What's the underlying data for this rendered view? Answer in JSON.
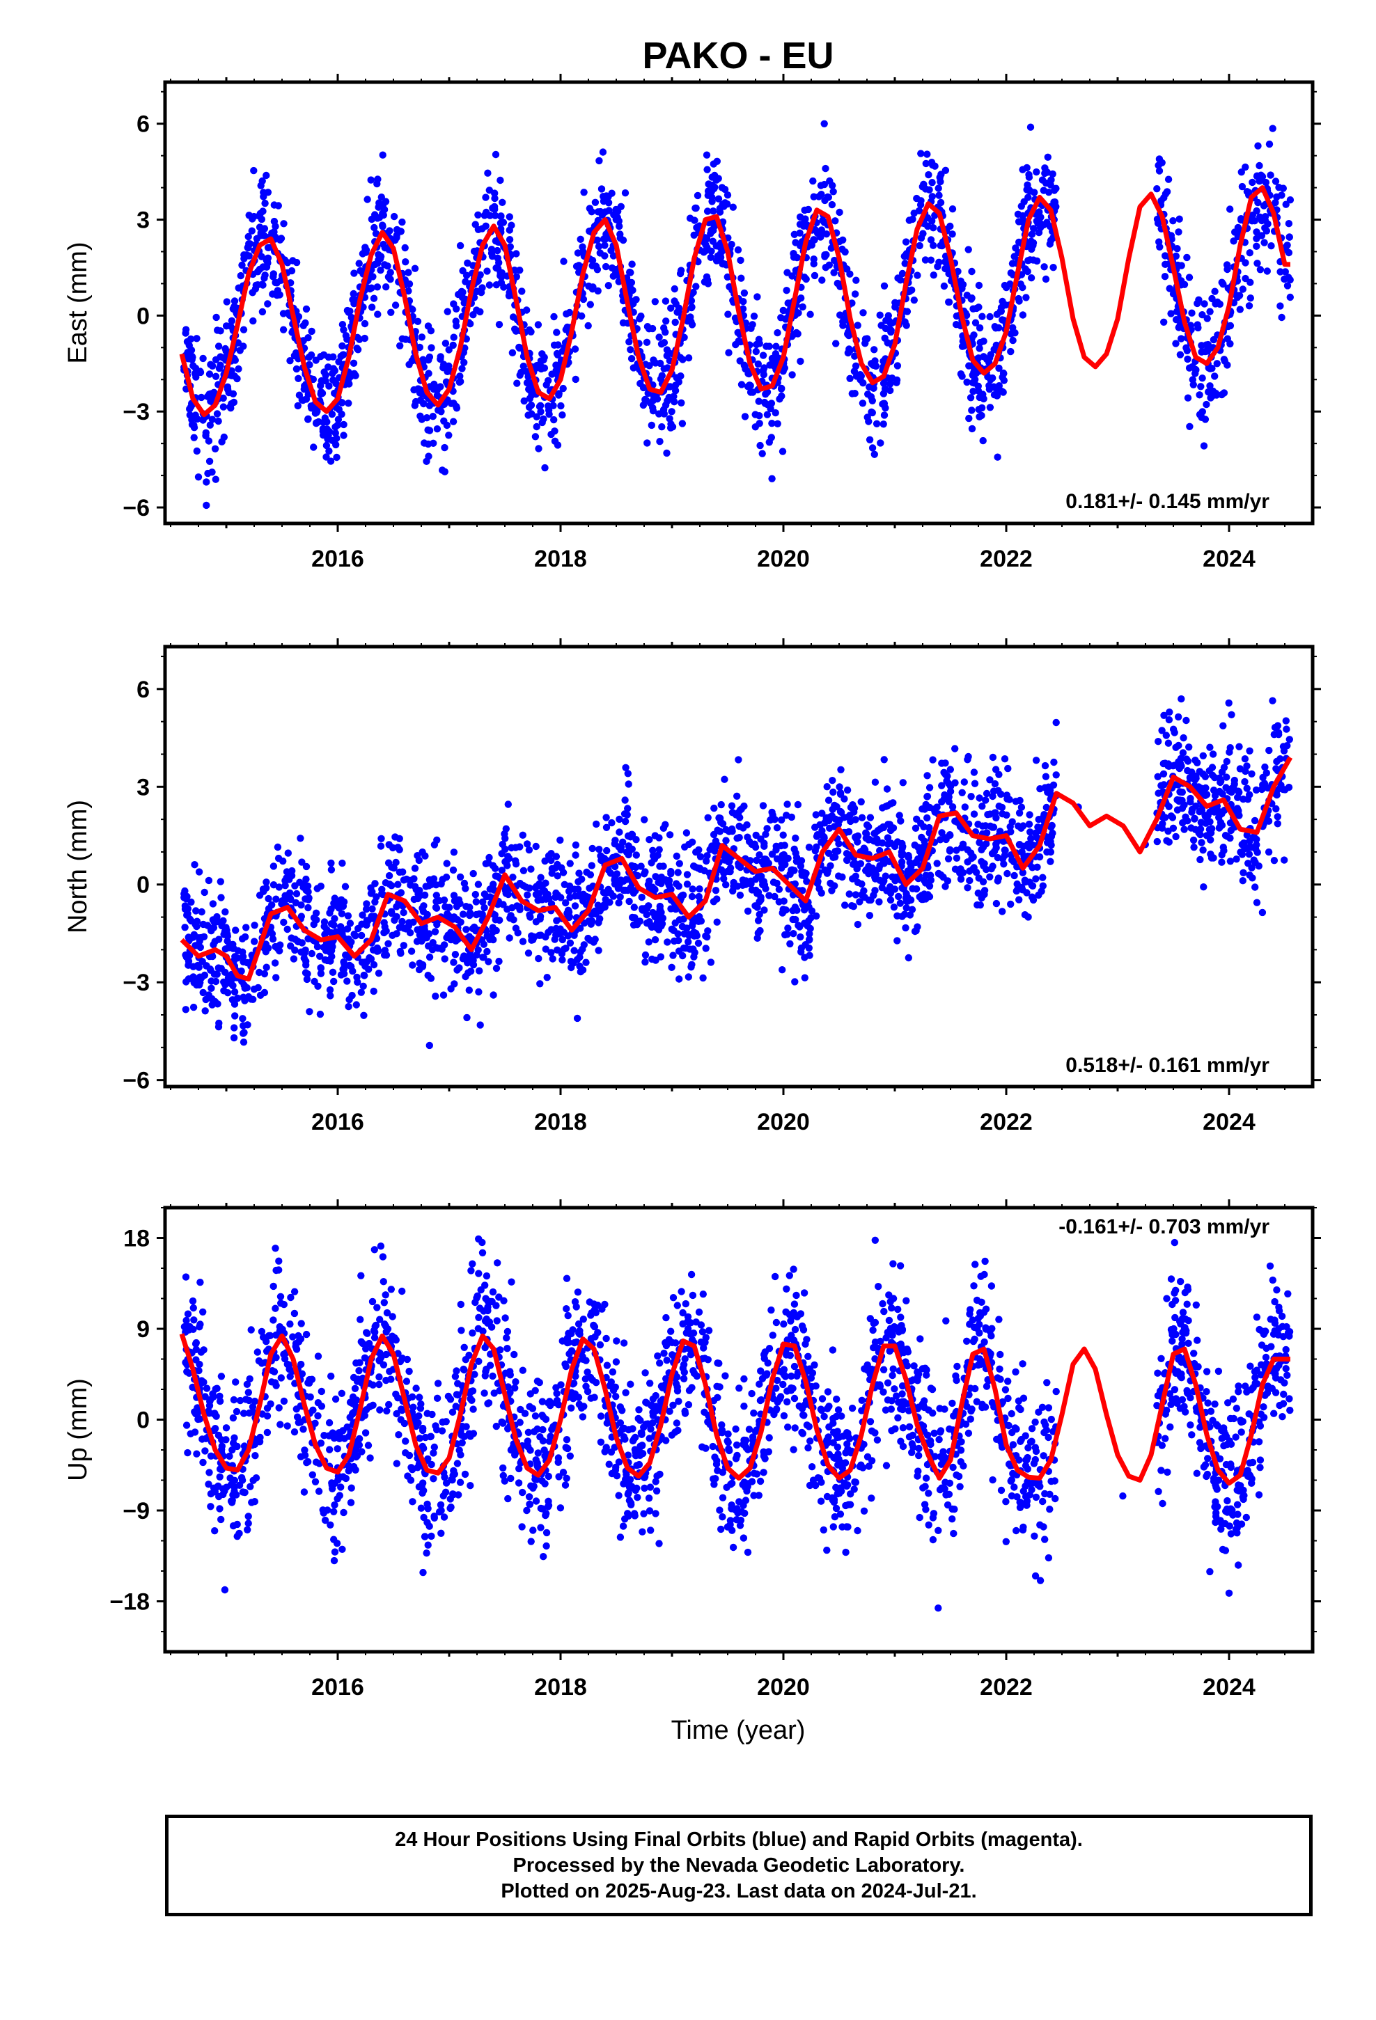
{
  "title": "PAKO - EU",
  "colors": {
    "data_points": "#0000ff",
    "model_curve": "#ff0000",
    "frame": "#000000"
  },
  "xlabel": "Time (year)",
  "footer": {
    "line1": "24 Hour Positions Using Final Orbits (blue) and Rapid Orbits (magenta).",
    "line2": "Processed by the Nevada Geodetic Laboratory.",
    "line3": "Plotted on 2025-Aug-23. Last data on 2024-Jul-21."
  },
  "chart_data": [
    {
      "type": "scatter",
      "ylabel": "East (mm)",
      "rate_label": "0.181+/- 0.145 mm/yr",
      "xlim": [
        2014.45,
        2024.75
      ],
      "ylim": [
        -6.5,
        7.3
      ],
      "x_ticks": [
        2016,
        2018,
        2020,
        2022,
        2024
      ],
      "y_ticks": [
        -6,
        -3,
        0,
        3,
        6
      ],
      "series": [
        {
          "type": "line",
          "x": [
            2014.6,
            2014.7,
            2014.8,
            2014.9,
            2015.0,
            2015.1,
            2015.2,
            2015.3,
            2015.4,
            2015.5,
            2015.6,
            2015.7,
            2015.8,
            2015.9,
            2016.0,
            2016.1,
            2016.2,
            2016.3,
            2016.4,
            2016.5,
            2016.6,
            2016.7,
            2016.8,
            2016.9,
            2017.0,
            2017.1,
            2017.2,
            2017.3,
            2017.4,
            2017.5,
            2017.6,
            2017.7,
            2017.8,
            2017.9,
            2018.0,
            2018.1,
            2018.2,
            2018.3,
            2018.4,
            2018.5,
            2018.6,
            2018.7,
            2018.8,
            2018.9,
            2019.0,
            2019.1,
            2019.2,
            2019.3,
            2019.4,
            2019.5,
            2019.6,
            2019.7,
            2019.8,
            2019.9,
            2020.0,
            2020.1,
            2020.2,
            2020.3,
            2020.4,
            2020.5,
            2020.6,
            2020.7,
            2020.8,
            2020.9,
            2021.0,
            2021.1,
            2021.2,
            2021.3,
            2021.4,
            2021.5,
            2021.6,
            2021.7,
            2021.8,
            2021.9,
            2022.0,
            2022.1,
            2022.2,
            2022.3,
            2022.4,
            2022.5,
            2022.6,
            2022.7,
            2022.8,
            2022.9,
            2023.0,
            2023.1,
            2023.2,
            2023.3,
            2023.4,
            2023.5,
            2023.6,
            2023.7,
            2023.8,
            2023.9,
            2024.0,
            2024.1,
            2024.2,
            2024.3,
            2024.4,
            2024.5,
            2024.55
          ],
          "y": [
            -1.2,
            -2.6,
            -3.1,
            -2.8,
            -1.8,
            -0.3,
            1.3,
            2.2,
            2.4,
            1.6,
            0.0,
            -1.6,
            -2.7,
            -3.0,
            -2.6,
            -1.3,
            0.5,
            1.9,
            2.6,
            2.1,
            0.6,
            -1.2,
            -2.4,
            -2.8,
            -2.3,
            -1.0,
            0.8,
            2.2,
            2.8,
            2.2,
            0.5,
            -1.3,
            -2.4,
            -2.6,
            -2.0,
            -0.5,
            1.3,
            2.6,
            3.0,
            2.2,
            0.4,
            -1.3,
            -2.3,
            -2.4,
            -1.7,
            -0.1,
            1.8,
            3.0,
            3.1,
            2.0,
            0.1,
            -1.5,
            -2.3,
            -2.2,
            -1.3,
            0.5,
            2.3,
            3.3,
            3.1,
            1.8,
            -0.1,
            -1.5,
            -2.1,
            -1.9,
            -0.9,
            1.0,
            2.7,
            3.5,
            3.2,
            1.8,
            0.0,
            -1.4,
            -1.8,
            -1.5,
            -0.5,
            1.3,
            3.0,
            3.7,
            3.3,
            1.8,
            -0.1,
            -1.3,
            -1.6,
            -1.2,
            -0.1,
            1.8,
            3.4,
            3.8,
            3.1,
            1.5,
            -0.2,
            -1.3,
            -1.5,
            -1.0,
            0.3,
            2.2,
            3.7,
            4.0,
            3.2,
            1.6,
            1.6
          ]
        }
      ]
    },
    {
      "type": "scatter",
      "ylabel": "North (mm)",
      "rate_label": "0.518+/- 0.161 mm/yr",
      "xlim": [
        2014.45,
        2024.75
      ],
      "ylim": [
        -6.2,
        7.3
      ],
      "x_ticks": [
        2016,
        2018,
        2020,
        2022,
        2024
      ],
      "y_ticks": [
        -6,
        -3,
        0,
        3,
        6
      ],
      "series": [
        {
          "type": "line",
          "x": [
            2014.6,
            2014.75,
            2014.9,
            2015.0,
            2015.1,
            2015.2,
            2015.3,
            2015.4,
            2015.55,
            2015.7,
            2015.85,
            2016.0,
            2016.15,
            2016.3,
            2016.45,
            2016.6,
            2016.75,
            2016.9,
            2017.05,
            2017.2,
            2017.35,
            2017.5,
            2017.65,
            2017.8,
            2017.95,
            2018.1,
            2018.25,
            2018.4,
            2018.55,
            2018.7,
            2018.85,
            2019.0,
            2019.15,
            2019.3,
            2019.45,
            2019.6,
            2019.75,
            2019.9,
            2020.05,
            2020.2,
            2020.35,
            2020.5,
            2020.65,
            2020.8,
            2020.95,
            2021.1,
            2021.25,
            2021.4,
            2021.55,
            2021.7,
            2021.85,
            2022.0,
            2022.15,
            2022.3,
            2022.45,
            2022.6,
            2022.75,
            2022.9,
            2023.05,
            2023.2,
            2023.35,
            2023.5,
            2023.65,
            2023.8,
            2023.95,
            2024.1,
            2024.25,
            2024.4,
            2024.55
          ],
          "y": [
            -1.7,
            -2.2,
            -2.0,
            -2.2,
            -2.8,
            -2.9,
            -1.9,
            -0.9,
            -0.7,
            -1.4,
            -1.7,
            -1.6,
            -2.2,
            -1.7,
            -0.3,
            -0.5,
            -1.2,
            -1.0,
            -1.3,
            -2.0,
            -1.0,
            0.3,
            -0.5,
            -0.8,
            -0.7,
            -1.4,
            -0.8,
            0.6,
            0.8,
            -0.1,
            -0.4,
            -0.3,
            -1.0,
            -0.5,
            1.2,
            0.8,
            0.4,
            0.5,
            0.0,
            -0.5,
            1.0,
            1.7,
            0.9,
            0.8,
            1.0,
            0.0,
            0.5,
            2.1,
            2.2,
            1.5,
            1.4,
            1.5,
            0.5,
            1.2,
            2.8,
            2.5,
            1.8,
            2.1,
            1.8,
            1.0,
            2.0,
            3.3,
            3.0,
            2.4,
            2.6,
            1.7,
            1.6,
            3.0,
            3.9
          ]
        }
      ]
    },
    {
      "type": "scatter",
      "ylabel": "Up (mm)",
      "rate_label": "-0.161+/- 0.703 mm/yr",
      "xlim": [
        2014.45,
        2024.75
      ],
      "ylim": [
        -23,
        21
      ],
      "x_ticks": [
        2016,
        2018,
        2020,
        2022,
        2024
      ],
      "y_ticks": [
        -18,
        -9,
        0,
        9,
        18
      ],
      "series": [
        {
          "type": "line",
          "x": [
            2014.6,
            2014.7,
            2014.8,
            2014.9,
            2015.0,
            2015.1,
            2015.2,
            2015.3,
            2015.4,
            2015.5,
            2015.6,
            2015.7,
            2015.8,
            2015.9,
            2016.0,
            2016.1,
            2016.2,
            2016.3,
            2016.4,
            2016.5,
            2016.6,
            2016.7,
            2016.8,
            2016.9,
            2017.0,
            2017.1,
            2017.2,
            2017.3,
            2017.4,
            2017.5,
            2017.6,
            2017.7,
            2017.8,
            2017.9,
            2018.0,
            2018.1,
            2018.2,
            2018.3,
            2018.4,
            2018.5,
            2018.6,
            2018.7,
            2018.8,
            2018.9,
            2019.0,
            2019.1,
            2019.2,
            2019.3,
            2019.4,
            2019.5,
            2019.6,
            2019.7,
            2019.8,
            2019.9,
            2020.0,
            2020.1,
            2020.2,
            2020.3,
            2020.4,
            2020.5,
            2020.6,
            2020.7,
            2020.8,
            2020.9,
            2021.0,
            2021.1,
            2021.2,
            2021.3,
            2021.4,
            2021.5,
            2021.6,
            2021.7,
            2021.8,
            2021.9,
            2022.0,
            2022.1,
            2022.2,
            2022.3,
            2022.4,
            2022.5,
            2022.6,
            2022.7,
            2022.8,
            2022.9,
            2023.0,
            2023.1,
            2023.2,
            2023.3,
            2023.4,
            2023.5,
            2023.6,
            2023.7,
            2023.8,
            2023.9,
            2024.0,
            2024.1,
            2024.2,
            2024.3,
            2024.4,
            2024.55
          ],
          "y": [
            8.5,
            5.0,
            0.5,
            -3.0,
            -4.8,
            -5.0,
            -3.0,
            1.5,
            6.5,
            8.3,
            6.0,
            1.5,
            -2.5,
            -4.8,
            -5.2,
            -3.5,
            1.0,
            6.0,
            8.3,
            6.5,
            2.0,
            -2.5,
            -5.0,
            -5.3,
            -3.8,
            0.5,
            5.5,
            8.3,
            7.0,
            2.5,
            -2.0,
            -4.8,
            -5.5,
            -4.0,
            0.0,
            5.0,
            8.0,
            7.0,
            3.0,
            -1.8,
            -4.8,
            -5.6,
            -4.3,
            -0.5,
            4.5,
            7.8,
            7.3,
            3.5,
            -1.5,
            -4.8,
            -5.8,
            -4.8,
            -1.2,
            4.0,
            7.5,
            7.3,
            3.8,
            -1.0,
            -4.5,
            -5.8,
            -5.0,
            -1.5,
            3.5,
            7.3,
            7.3,
            4.0,
            -0.5,
            -3.5,
            -5.8,
            -4.0,
            1.5,
            6.5,
            7.0,
            3.0,
            -2.5,
            -5.0,
            -5.7,
            -5.8,
            -4.0,
            0.5,
            5.5,
            7.0,
            5.0,
            0.5,
            -3.5,
            -5.6,
            -6.0,
            -3.5,
            1.5,
            6.5,
            7.0,
            3.5,
            -1.5,
            -5.0,
            -6.3,
            -5.5,
            -1.5,
            3.5,
            6.0,
            6.0
          ]
        }
      ]
    }
  ]
}
